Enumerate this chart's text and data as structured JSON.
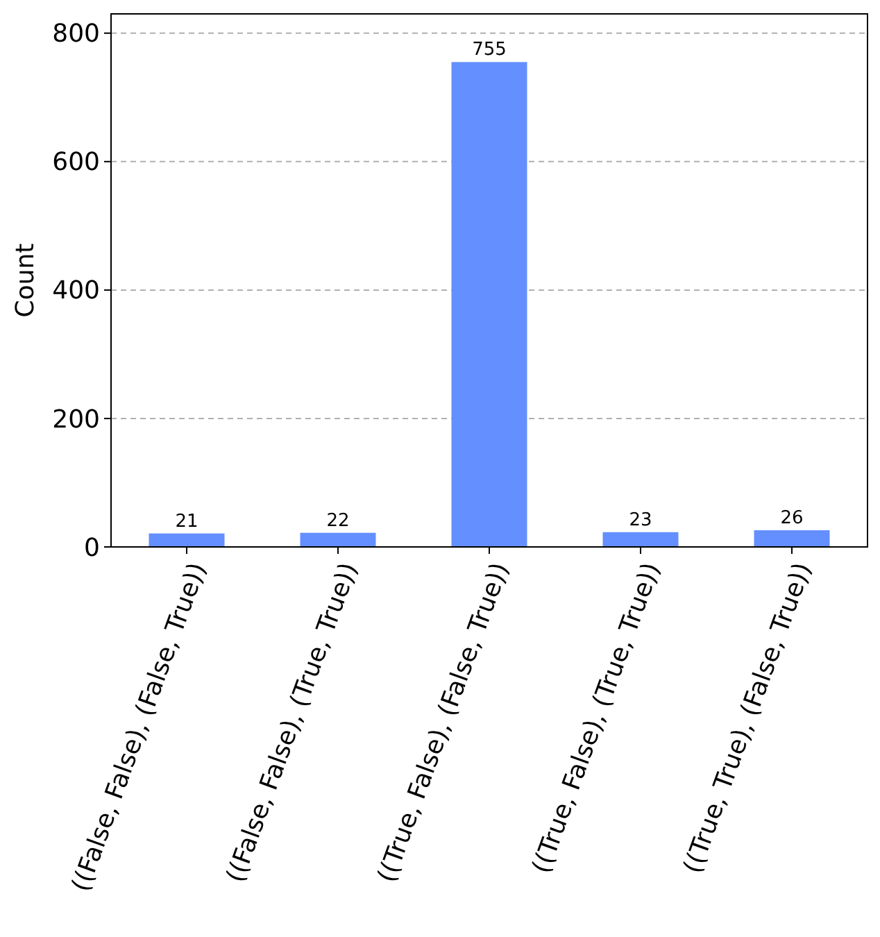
{
  "chart_data": {
    "type": "bar",
    "ylabel": "Count",
    "categories": [
      "((False, False), (False, True))",
      "((False, False), (True, True))",
      "((True, False), (False, True))",
      "((True, False), (True, True))",
      "((True, True), (False, True))"
    ],
    "values": [
      21,
      22,
      755,
      23,
      26
    ],
    "color": "#648fff",
    "data_labels": true,
    "ylim": [
      0,
      830
    ],
    "yticks": [
      0,
      200,
      400,
      600,
      800
    ],
    "grid": "y"
  }
}
